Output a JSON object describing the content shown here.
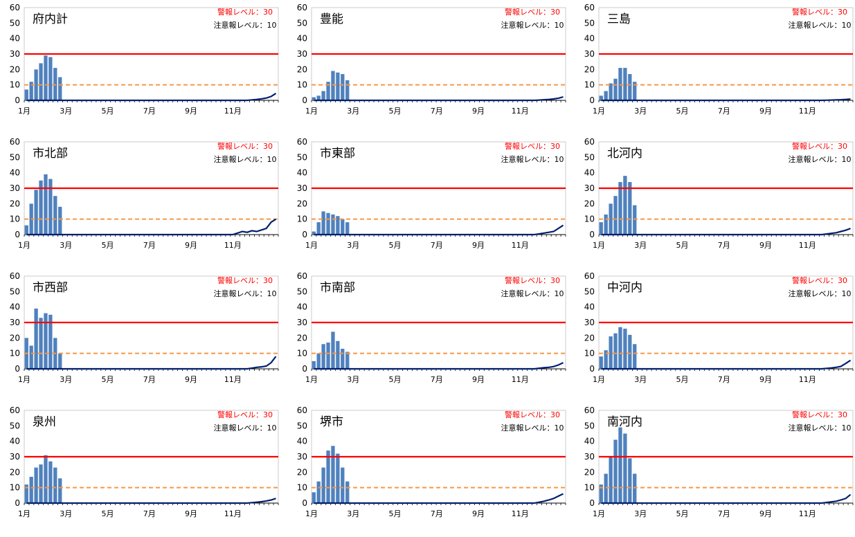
{
  "labels": {
    "alert": "警報レベル：30",
    "warning": "注意報レベル：10"
  },
  "colors": {
    "bar": "#4f81bd",
    "line": "#001f6e",
    "alert": "#ff0000",
    "warning": "#f79646",
    "axis": "#000000"
  },
  "chart_data": [
    {
      "type": "bar",
      "title": "府内計",
      "xlabels": [
        "1月",
        "3月",
        "5月",
        "7月",
        "9月",
        "11月"
      ],
      "ylim": [
        0,
        60
      ],
      "yticks": [
        0,
        10,
        20,
        30,
        40,
        50,
        60
      ],
      "alert_level": 30,
      "warning_level": 10,
      "bars": [
        7,
        12,
        20,
        24,
        29,
        28,
        21,
        15
      ],
      "line": [
        0,
        0,
        0,
        0,
        0,
        0,
        0,
        0,
        0,
        0,
        0,
        0,
        0,
        0,
        0,
        0,
        0,
        0,
        0,
        0,
        0,
        0,
        0,
        0,
        0,
        0,
        0,
        0,
        0,
        0,
        0,
        0,
        0,
        0,
        0,
        0,
        0,
        0,
        0,
        0,
        0,
        0,
        0,
        0,
        0,
        0,
        0,
        0.3,
        0.6,
        1,
        1.5,
        2.5,
        4.5
      ]
    },
    {
      "type": "bar",
      "title": "豊能",
      "xlabels": [
        "1月",
        "3月",
        "5月",
        "7月",
        "9月",
        "11月"
      ],
      "ylim": [
        0,
        60
      ],
      "yticks": [
        0,
        10,
        20,
        30,
        40,
        50,
        60
      ],
      "alert_level": 30,
      "warning_level": 10,
      "bars": [
        2,
        3,
        6,
        12,
        19,
        18,
        17,
        13
      ],
      "line": [
        0,
        0,
        0,
        0,
        0,
        0,
        0,
        0,
        0,
        0,
        0,
        0,
        0,
        0,
        0,
        0,
        0,
        0,
        0,
        0,
        0,
        0,
        0,
        0,
        0,
        0,
        0,
        0,
        0,
        0,
        0,
        0,
        0,
        0,
        0,
        0,
        0,
        0,
        0,
        0,
        0,
        0,
        0,
        0,
        0,
        0,
        0,
        0.2,
        0.4,
        0.6,
        0.9,
        1.4,
        2.2
      ]
    },
    {
      "type": "bar",
      "title": "三島",
      "xlabels": [
        "1月",
        "3月",
        "5月",
        "7月",
        "9月",
        "11月"
      ],
      "ylim": [
        0,
        60
      ],
      "yticks": [
        0,
        10,
        20,
        30,
        40,
        50,
        60
      ],
      "alert_level": 30,
      "warning_level": 10,
      "bars": [
        3,
        6,
        11,
        14,
        21,
        21,
        17,
        12
      ],
      "line": [
        0,
        0,
        0,
        0,
        0,
        0,
        0,
        0,
        0,
        0,
        0,
        0,
        0,
        0,
        0,
        0,
        0,
        0,
        0,
        0,
        0,
        0,
        0,
        0,
        0,
        0,
        0,
        0,
        0,
        0,
        0,
        0,
        0,
        0,
        0,
        0,
        0,
        0,
        0,
        0,
        0,
        0,
        0,
        0,
        0,
        0,
        0,
        0.1,
        0.2,
        0.3,
        0.4,
        0.6,
        0.8
      ]
    },
    {
      "type": "bar",
      "title": "市北部",
      "xlabels": [
        "1月",
        "3月",
        "5月",
        "7月",
        "9月",
        "11月"
      ],
      "ylim": [
        0,
        60
      ],
      "yticks": [
        0,
        10,
        20,
        30,
        40,
        50,
        60
      ],
      "alert_level": 30,
      "warning_level": 10,
      "bars": [
        6,
        20,
        29,
        35,
        39,
        36,
        25,
        18
      ],
      "line": [
        0,
        0,
        0,
        0,
        0,
        0,
        0,
        0,
        0,
        0,
        0,
        0,
        0,
        0,
        0,
        0,
        0,
        0,
        0,
        0,
        0,
        0,
        0,
        0,
        0,
        0,
        0,
        0,
        0,
        0,
        0,
        0,
        0,
        0,
        0,
        0,
        0,
        0,
        0,
        0,
        0,
        0,
        0,
        0,
        1,
        2,
        1.5,
        2.5,
        2,
        3,
        4,
        8,
        10
      ]
    },
    {
      "type": "bar",
      "title": "市東部",
      "xlabels": [
        "1月",
        "3月",
        "5月",
        "7月",
        "9月",
        "11月"
      ],
      "ylim": [
        0,
        60
      ],
      "yticks": [
        0,
        10,
        20,
        30,
        40,
        50,
        60
      ],
      "alert_level": 30,
      "warning_level": 10,
      "bars": [
        2,
        8,
        15,
        14,
        13,
        12,
        10,
        8
      ],
      "line": [
        0,
        0,
        0,
        0,
        0,
        0,
        0,
        0,
        0,
        0,
        0,
        0,
        0,
        0,
        0,
        0,
        0,
        0,
        0,
        0,
        0,
        0,
        0,
        0,
        0,
        0,
        0,
        0,
        0,
        0,
        0,
        0,
        0,
        0,
        0,
        0,
        0,
        0,
        0,
        0,
        0,
        0,
        0,
        0,
        0,
        0,
        0,
        0.5,
        1,
        1.5,
        2,
        4,
        6
      ]
    },
    {
      "type": "bar",
      "title": "北河内",
      "xlabels": [
        "1月",
        "3月",
        "5月",
        "7月",
        "9月",
        "11月"
      ],
      "ylim": [
        0,
        60
      ],
      "yticks": [
        0,
        10,
        20,
        30,
        40,
        50,
        60
      ],
      "alert_level": 30,
      "warning_level": 10,
      "bars": [
        8,
        13,
        20,
        25,
        34,
        38,
        34,
        19
      ],
      "line": [
        0,
        0,
        0,
        0,
        0,
        0,
        0,
        0,
        0,
        0,
        0,
        0,
        0,
        0,
        0,
        0,
        0,
        0,
        0,
        0,
        0,
        0,
        0,
        0,
        0,
        0,
        0,
        0,
        0,
        0,
        0,
        0,
        0,
        0,
        0,
        0,
        0,
        0,
        0,
        0,
        0,
        0,
        0,
        0,
        0,
        0,
        0,
        0.4,
        0.8,
        1.2,
        2,
        2.8,
        4
      ]
    },
    {
      "type": "bar",
      "title": "市西部",
      "xlabels": [
        "1月",
        "3月",
        "5月",
        "7月",
        "9月",
        "11月"
      ],
      "ylim": [
        0,
        60
      ],
      "yticks": [
        0,
        10,
        20,
        30,
        40,
        50,
        60
      ],
      "alert_level": 30,
      "warning_level": 10,
      "bars": [
        20,
        15,
        39,
        33,
        36,
        35,
        20,
        10
      ],
      "line": [
        0,
        0,
        0,
        0,
        0,
        0,
        0,
        0,
        0,
        0,
        0,
        0,
        0,
        0,
        0,
        0,
        0,
        0,
        0,
        0,
        0,
        0,
        0,
        0,
        0,
        0,
        0,
        0,
        0,
        0,
        0,
        0,
        0,
        0,
        0,
        0,
        0,
        0,
        0,
        0,
        0,
        0,
        0,
        0,
        0,
        0,
        0,
        0.5,
        1,
        1.3,
        1.8,
        4,
        8
      ]
    },
    {
      "type": "bar",
      "title": "市南部",
      "xlabels": [
        "1月",
        "3月",
        "5月",
        "7月",
        "9月",
        "11月"
      ],
      "ylim": [
        0,
        60
      ],
      "yticks": [
        0,
        10,
        20,
        30,
        40,
        50,
        60
      ],
      "alert_level": 30,
      "warning_level": 10,
      "bars": [
        5,
        10,
        16,
        17,
        24,
        18,
        13,
        11
      ],
      "line": [
        0,
        0,
        0,
        0,
        0,
        0,
        0,
        0,
        0,
        0,
        0,
        0,
        0,
        0,
        0,
        0,
        0,
        0,
        0,
        0,
        0,
        0,
        0,
        0,
        0,
        0,
        0,
        0,
        0,
        0,
        0,
        0,
        0,
        0,
        0,
        0,
        0,
        0,
        0,
        0,
        0,
        0,
        0,
        0,
        0,
        0,
        0,
        0.4,
        0.7,
        1,
        1.5,
        2.5,
        4
      ]
    },
    {
      "type": "bar",
      "title": "中河内",
      "xlabels": [
        "1月",
        "3月",
        "5月",
        "7月",
        "9月",
        "11月"
      ],
      "ylim": [
        0,
        60
      ],
      "yticks": [
        0,
        10,
        20,
        30,
        40,
        50,
        60
      ],
      "alert_level": 30,
      "warning_level": 10,
      "bars": [
        8,
        12,
        21,
        23,
        27,
        26,
        22,
        16
      ],
      "line": [
        0,
        0,
        0,
        0,
        0,
        0,
        0,
        0,
        0,
        0,
        0,
        0,
        0,
        0,
        0,
        0,
        0,
        0,
        0,
        0,
        0,
        0,
        0,
        0,
        0,
        0,
        0,
        0,
        0,
        0,
        0,
        0,
        0,
        0,
        0,
        0,
        0,
        0,
        0,
        0,
        0,
        0,
        0,
        0,
        0,
        0,
        0,
        0.3,
        0.6,
        1,
        1.6,
        3.5,
        5.5
      ]
    },
    {
      "type": "bar",
      "title": "泉州",
      "xlabels": [
        "1月",
        "3月",
        "5月",
        "7月",
        "9月",
        "11月"
      ],
      "ylim": [
        0,
        60
      ],
      "yticks": [
        0,
        10,
        20,
        30,
        40,
        50,
        60
      ],
      "alert_level": 30,
      "warning_level": 10,
      "bars": [
        12,
        17,
        23,
        25,
        31,
        27,
        23,
        16
      ],
      "line": [
        0,
        0,
        0,
        0,
        0,
        0,
        0,
        0,
        0,
        0,
        0,
        0,
        0,
        0,
        0,
        0,
        0,
        0,
        0,
        0,
        0,
        0,
        0,
        0,
        0,
        0,
        0,
        0,
        0,
        0,
        0,
        0,
        0,
        0,
        0,
        0,
        0,
        0,
        0,
        0,
        0,
        0,
        0,
        0,
        0,
        0,
        0,
        0.3,
        0.6,
        0.9,
        1.4,
        2,
        3
      ]
    },
    {
      "type": "bar",
      "title": "堺市",
      "xlabels": [
        "1月",
        "3月",
        "5月",
        "7月",
        "9月",
        "11月"
      ],
      "ylim": [
        0,
        60
      ],
      "yticks": [
        0,
        10,
        20,
        30,
        40,
        50,
        60
      ],
      "alert_level": 30,
      "warning_level": 10,
      "bars": [
        7,
        14,
        23,
        34,
        37,
        32,
        23,
        14
      ],
      "line": [
        0,
        0,
        0,
        0,
        0,
        0,
        0,
        0,
        0,
        0,
        0,
        0,
        0,
        0,
        0,
        0,
        0,
        0,
        0,
        0,
        0,
        0,
        0,
        0,
        0,
        0,
        0,
        0,
        0,
        0,
        0,
        0,
        0,
        0,
        0,
        0,
        0,
        0,
        0,
        0,
        0,
        0,
        0,
        0,
        0,
        0,
        0,
        0.6,
        1.2,
        2,
        3,
        4.5,
        6
      ]
    },
    {
      "type": "bar",
      "title": "南河内",
      "xlabels": [
        "1月",
        "3月",
        "5月",
        "7月",
        "9月",
        "11月"
      ],
      "ylim": [
        0,
        60
      ],
      "yticks": [
        0,
        10,
        20,
        30,
        40,
        50,
        60
      ],
      "alert_level": 30,
      "warning_level": 10,
      "bars": [
        12,
        19,
        30,
        41,
        49,
        45,
        29,
        19
      ],
      "line": [
        0,
        0,
        0,
        0,
        0,
        0,
        0,
        0,
        0,
        0,
        0,
        0,
        0,
        0,
        0,
        0,
        0,
        0,
        0,
        0,
        0,
        0,
        0,
        0,
        0,
        0,
        0,
        0,
        0,
        0,
        0,
        0,
        0,
        0,
        0,
        0,
        0,
        0,
        0,
        0,
        0,
        0,
        0,
        0,
        0,
        0,
        0,
        0.4,
        0.8,
        1.2,
        2,
        3,
        5.5
      ]
    }
  ]
}
